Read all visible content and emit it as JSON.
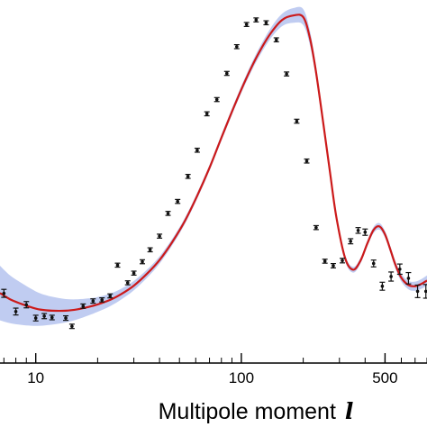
{
  "chart_data": {
    "type": "scatter",
    "xlabel": "Multipole moment",
    "xlabel_variable": "l",
    "ylabel": "",
    "title": "",
    "x_scale": "log",
    "x_ticks": [
      10,
      100,
      500
    ],
    "xlim": [
      6.7,
      800
    ],
    "ylim": [
      -80,
      6300
    ],
    "grid": false,
    "colors": {
      "model_curve": "#cc1a1a",
      "uncertainty_band": "#b9c6ef",
      "data_points": "#111111",
      "axes": "#000000"
    },
    "series": [
      {
        "kind": "points_with_errorbars",
        "x": [
          7,
          8,
          9,
          10,
          11,
          12,
          14,
          15,
          17,
          19,
          21,
          23,
          25,
          28,
          30,
          33,
          36,
          40,
          44,
          49,
          55,
          61,
          68,
          76,
          85,
          95,
          106,
          118,
          132,
          148,
          166,
          186,
          208,
          231,
          255,
          280,
          310,
          340,
          370,
          400,
          440,
          485,
          535,
          590,
          650,
          720,
          790
        ],
        "y": [
          1145,
          825,
          945,
          710,
          745,
          720,
          710,
          565,
          920,
          1010,
          1030,
          1100,
          1640,
          1330,
          1500,
          1700,
          1910,
          2150,
          2550,
          2760,
          3200,
          3660,
          4300,
          4550,
          5010,
          5480,
          5870,
          5950,
          5900,
          5600,
          5000,
          4170,
          3470,
          2300,
          1710,
          1630,
          1720,
          2060,
          2250,
          2220,
          1670,
          1270,
          1440,
          1570,
          1410,
          1180,
          1180
        ],
        "err": [
          70,
          60,
          55,
          50,
          45,
          40,
          40,
          38,
          38,
          38,
          36,
          35,
          35,
          35,
          35,
          35,
          35,
          35,
          35,
          35,
          35,
          35,
          35,
          35,
          35,
          35,
          35,
          35,
          35,
          35,
          35,
          35,
          35,
          35,
          35,
          38,
          40,
          45,
          50,
          55,
          60,
          70,
          80,
          90,
          100,
          110,
          120
        ]
      },
      {
        "kind": "model_curve",
        "x": [
          6.7,
          7.5,
          8.5,
          9.5,
          10.5,
          12,
          14,
          16,
          18,
          20,
          23,
          26,
          30,
          35,
          40,
          46,
          53,
          61,
          70,
          80,
          92,
          105,
          120,
          138,
          158,
          180,
          200,
          215,
          230,
          250,
          270,
          290,
          320,
          350,
          380,
          410,
          440,
          470,
          500,
          530,
          560,
          600,
          650,
          700,
          750,
          800
        ],
        "y": [
          1150,
          1040,
          960,
          900,
          860,
          840,
          840,
          865,
          905,
          950,
          1030,
          1130,
          1280,
          1500,
          1730,
          2040,
          2410,
          2860,
          3350,
          3880,
          4420,
          4900,
          5330,
          5700,
          5950,
          6030,
          6000,
          5650,
          5070,
          4150,
          3270,
          2480,
          1760,
          1560,
          1720,
          2020,
          2260,
          2320,
          2180,
          1920,
          1660,
          1420,
          1290,
          1270,
          1310,
          1370
        ]
      },
      {
        "kind": "uncertainty_band",
        "x": [
          6.7,
          7.5,
          8.5,
          9.5,
          10.5,
          12,
          14,
          16,
          18,
          20,
          23,
          26,
          30,
          35,
          40,
          46,
          53,
          61,
          70,
          80,
          92,
          105,
          120,
          138,
          158,
          180,
          200,
          215,
          230,
          250,
          270,
          290,
          320,
          350,
          380,
          410,
          440,
          470,
          500,
          530,
          560,
          600,
          650,
          700,
          750,
          800
        ],
        "halfwidth": [
          480,
          420,
          370,
          325,
          285,
          245,
          205,
          175,
          150,
          130,
          110,
          95,
          82,
          72,
          64,
          58,
          54,
          52,
          52,
          54,
          58,
          65,
          75,
          90,
          110,
          130,
          140,
          130,
          110,
          90,
          75,
          65,
          55,
          50,
          50,
          52,
          55,
          58,
          60,
          62,
          65,
          70,
          75,
          80,
          85,
          90
        ]
      }
    ]
  }
}
